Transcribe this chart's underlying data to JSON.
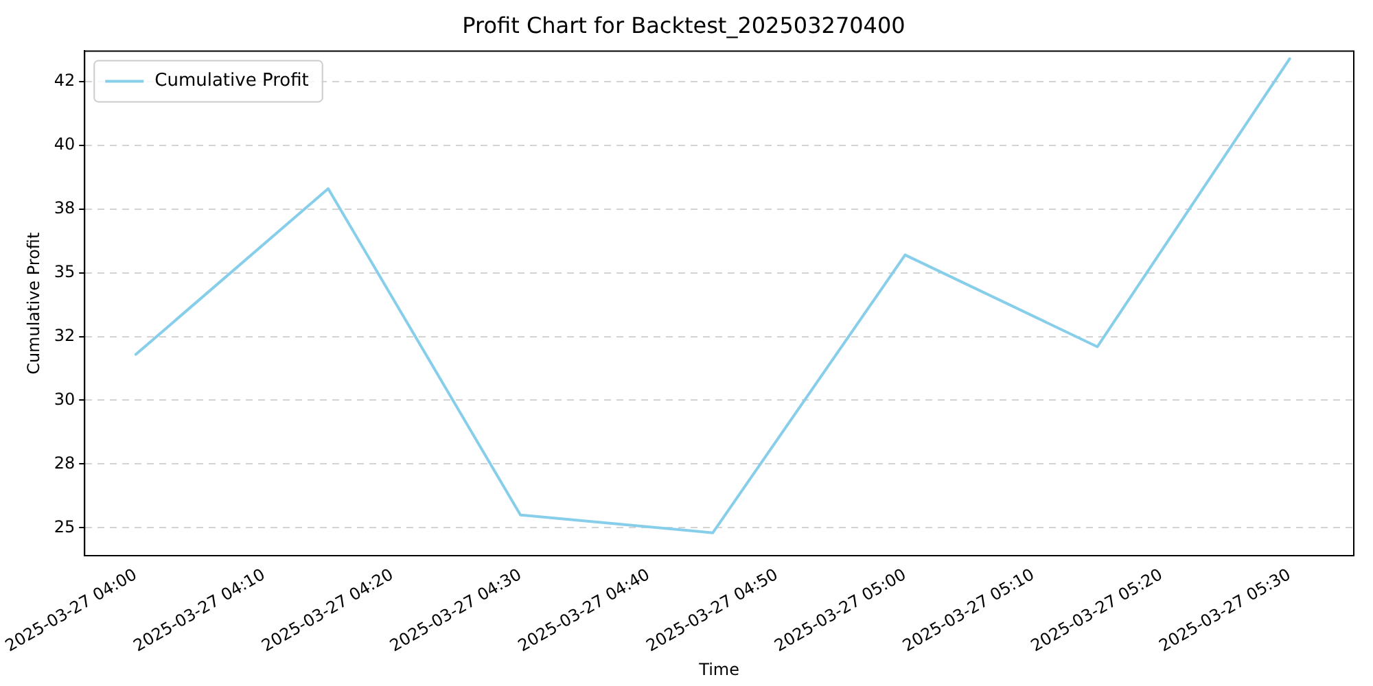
{
  "chart_data": {
    "type": "line",
    "title": "Profit Chart for Backtest_202503270400",
    "xlabel": "Time",
    "ylabel": "Cumulative Profit",
    "x": [
      "2025-03-27T04:00",
      "2025-03-27T04:15",
      "2025-03-27T04:30",
      "2025-03-27T04:45",
      "2025-03-27T05:00",
      "2025-03-27T05:15",
      "2025-03-27T05:30"
    ],
    "series": [
      {
        "name": "Cumulative Profit",
        "color": "#87ceeb",
        "values": [
          31.8,
          38.3,
          25.5,
          24.8,
          35.7,
          32.1,
          43.4
        ]
      }
    ],
    "xlim": [
      "2025-03-27T03:56",
      "2025-03-27T05:35"
    ],
    "xticks": [
      {
        "value": "2025-03-27T04:00",
        "label": "2025-03-27 04:00"
      },
      {
        "value": "2025-03-27T04:10",
        "label": "2025-03-27 04:10"
      },
      {
        "value": "2025-03-27T04:20",
        "label": "2025-03-27 04:20"
      },
      {
        "value": "2025-03-27T04:30",
        "label": "2025-03-27 04:30"
      },
      {
        "value": "2025-03-27T04:40",
        "label": "2025-03-27 04:40"
      },
      {
        "value": "2025-03-27T04:50",
        "label": "2025-03-27 04:50"
      },
      {
        "value": "2025-03-27T05:00",
        "label": "2025-03-27 05:00"
      },
      {
        "value": "2025-03-27T05:10",
        "label": "2025-03-27 05:10"
      },
      {
        "value": "2025-03-27T05:20",
        "label": "2025-03-27 05:20"
      },
      {
        "value": "2025-03-27T05:30",
        "label": "2025-03-27 05:30"
      }
    ],
    "ylim": [
      23.9,
      43.7
    ],
    "yticks": [
      25,
      {
        "value": 27.5,
        "label": "28"
      },
      30,
      {
        "value": 32.5,
        "label": "32"
      },
      35,
      {
        "value": 37.5,
        "label": "38"
      },
      40,
      {
        "value": 42.5,
        "label": "42"
      }
    ],
    "grid": "y",
    "legend": "top left",
    "line_style": "solid",
    "marker": "none"
  }
}
